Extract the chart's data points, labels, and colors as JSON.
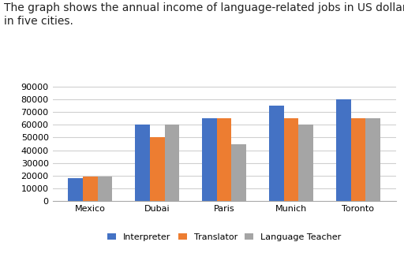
{
  "title": "The graph shows the annual income of language-related jobs in US dollars\nin five cities.",
  "cities": [
    "Mexico",
    "Dubai",
    "Paris",
    "Munich",
    "Toronto"
  ],
  "series": {
    "Interpreter": [
      18000,
      60000,
      65000,
      75000,
      80000
    ],
    "Translator": [
      19000,
      50000,
      65000,
      65000,
      65000
    ],
    "Language Teacher": [
      19500,
      60000,
      45000,
      60000,
      65000
    ]
  },
  "colors": {
    "Interpreter": "#4472c4",
    "Translator": "#ed7d31",
    "Language Teacher": "#a5a5a5"
  },
  "ylim": [
    0,
    95000
  ],
  "yticks": [
    0,
    10000,
    20000,
    30000,
    40000,
    50000,
    60000,
    70000,
    80000,
    90000
  ],
  "bar_width": 0.22,
  "background_color": "#ffffff",
  "grid_color": "#d0d0d0",
  "title_fontsize": 10.0,
  "tick_fontsize": 8.0,
  "legend_fontsize": 8.0
}
